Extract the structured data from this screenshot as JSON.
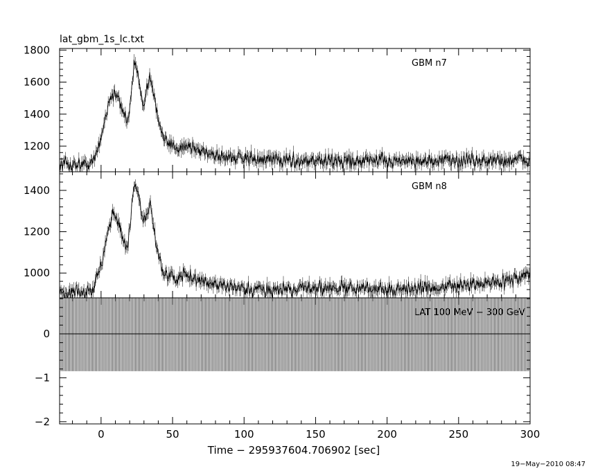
{
  "chart_data": {
    "type": "line",
    "title": "lat_gbm_1s_lc.txt",
    "xlabel": "Time − 295937604.706902 [sec]",
    "timestamp": "19−May−2010 08:47",
    "x_range": [
      -29,
      300
    ],
    "x_ticks": [
      0,
      50,
      100,
      150,
      200,
      250,
      300
    ],
    "x_tick_labels": [
      "0",
      "50",
      "100",
      "150",
      "200",
      "250",
      "300"
    ],
    "grid": false,
    "panels": [
      {
        "label": "GBM n7",
        "ylim": [
          1040,
          1810
        ],
        "y_ticks": [
          1200,
          1400,
          1600,
          1800
        ],
        "y_tick_labels": [
          "1200",
          "1400",
          "1600",
          "1800"
        ],
        "series_profile": [
          [
            -29,
            1080
          ],
          [
            -20,
            1085
          ],
          [
            -10,
            1090
          ],
          [
            -5,
            1100
          ],
          [
            0,
            1260
          ],
          [
            5,
            1460
          ],
          [
            8,
            1530
          ],
          [
            11,
            1510
          ],
          [
            15,
            1430
          ],
          [
            18,
            1350
          ],
          [
            20,
            1450
          ],
          [
            23,
            1700
          ],
          [
            26,
            1640
          ],
          [
            29,
            1500
          ],
          [
            31,
            1490
          ],
          [
            34,
            1650
          ],
          [
            37,
            1520
          ],
          [
            40,
            1350
          ],
          [
            44,
            1230
          ],
          [
            50,
            1200
          ],
          [
            60,
            1200
          ],
          [
            70,
            1170
          ],
          [
            85,
            1140
          ],
          [
            100,
            1120
          ],
          [
            150,
            1110
          ],
          [
            200,
            1110
          ],
          [
            250,
            1110
          ],
          [
            300,
            1110
          ]
        ]
      },
      {
        "label": "GBM n8",
        "ylim": [
          880,
          1490
        ],
        "y_ticks": [
          1000,
          1200,
          1400
        ],
        "y_tick_labels": [
          "1000",
          "1200",
          "1400"
        ],
        "series_profile": [
          [
            -29,
            910
          ],
          [
            -20,
            900
          ],
          [
            -10,
            905
          ],
          [
            -5,
            920
          ],
          [
            0,
            1040
          ],
          [
            5,
            1220
          ],
          [
            8,
            1300
          ],
          [
            11,
            1260
          ],
          [
            15,
            1180
          ],
          [
            18,
            1110
          ],
          [
            20,
            1200
          ],
          [
            23,
            1430
          ],
          [
            26,
            1370
          ],
          [
            29,
            1260
          ],
          [
            31,
            1250
          ],
          [
            34,
            1340
          ],
          [
            37,
            1230
          ],
          [
            40,
            1090
          ],
          [
            44,
            1000
          ],
          [
            50,
            975
          ],
          [
            60,
            985
          ],
          [
            70,
            960
          ],
          [
            90,
            930
          ],
          [
            100,
            915
          ],
          [
            150,
            930
          ],
          [
            200,
            920
          ],
          [
            250,
            935
          ],
          [
            280,
            960
          ],
          [
            300,
            990
          ]
        ]
      },
      {
        "label": "LAT 100 MeV − 300 GeV",
        "ylim": [
          -2.05,
          0.82
        ],
        "y_ticks": [
          -2,
          -1,
          0
        ],
        "y_tick_labels": [
          "−2",
          "−1",
          "0"
        ],
        "band": [
          -0.85,
          0.82
        ],
        "baseline": 0,
        "bar_spacing_sec": 1
      }
    ]
  }
}
